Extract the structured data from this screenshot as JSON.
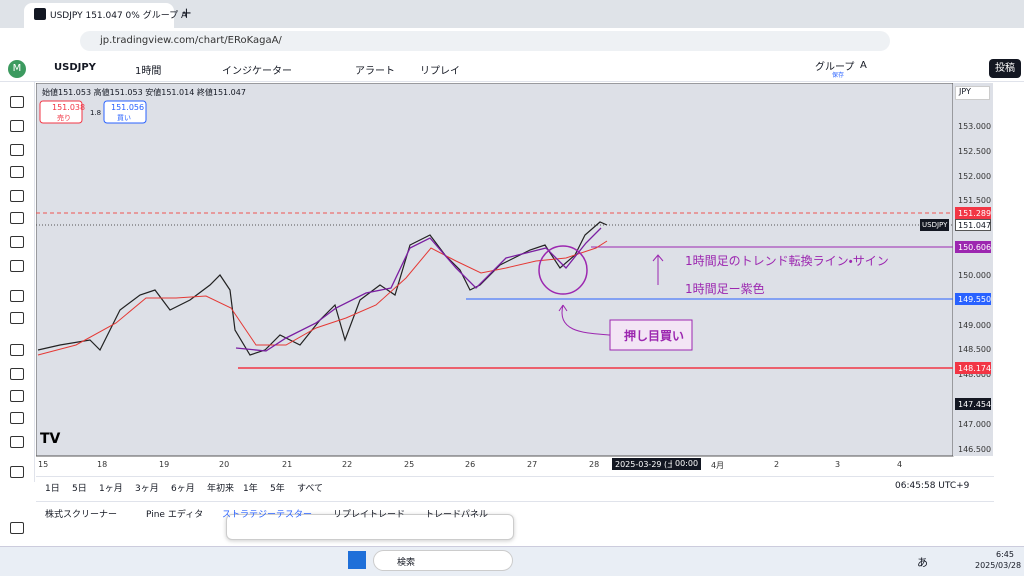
{
  "browser": {
    "tab_title": "USDJPY 151.047 0% グループ A",
    "url": "jp.tradingview.com/chart/ERoKagaA/"
  },
  "toolbar": {
    "symbol": "USDJPY",
    "interval": "1時間",
    "indicators": "インジケーター",
    "alert": "アラート",
    "replay": "リプレイ",
    "layout_name": "グループ",
    "layout_letter": "A",
    "save_status": "保存",
    "publish": "投稿"
  },
  "chart": {
    "ohlc": "始値151.053 高値151.053 安値151.014 終値151.047",
    "sell_price": "151.038",
    "sell_label": "売り",
    "spread": "1.8",
    "buy_price": "151.056",
    "buy_label": "買い",
    "currency": "JPY",
    "price_axis": [
      "153.000",
      "152.500",
      "152.000",
      "151.500",
      "150.000",
      "149.000",
      "148.500",
      "148.000",
      "147.000",
      "146.500"
    ],
    "markers": [
      {
        "label": "151.289"
      },
      {
        "name": "USDJPY",
        "label": "151.047"
      },
      {
        "label": "150.606"
      },
      {
        "label": "149.550"
      },
      {
        "label": "148.174"
      },
      {
        "label": "147.454"
      }
    ],
    "time_axis": [
      "15",
      "18",
      "19",
      "20",
      "21",
      "22",
      "25",
      "26",
      "27",
      "28",
      "4月",
      "2",
      "3",
      "4"
    ],
    "crosshair_date": "2025-03-29 (土)",
    "crosshair_time": "00:00",
    "annotations": [
      "1時間足のトレンド転換ライン・サイン",
      "1時間足ー紫色",
      "押し目買い"
    ]
  },
  "bottom": {
    "ranges": [
      "1日",
      "5日",
      "1ヶ月",
      "3ヶ月",
      "6ヶ月",
      "年初来",
      "1年",
      "5年",
      "すべて"
    ],
    "clock": "06:45:58 UTC+9",
    "tabs": [
      "株式スクリーナー",
      "Pine エディタ",
      "ストラテジーテスター",
      "リプレイトレード",
      "トレードパネル"
    ]
  },
  "taskbar": {
    "search": "検索",
    "ime": "あ",
    "time": "6:45",
    "date": "2025/03/28"
  }
}
